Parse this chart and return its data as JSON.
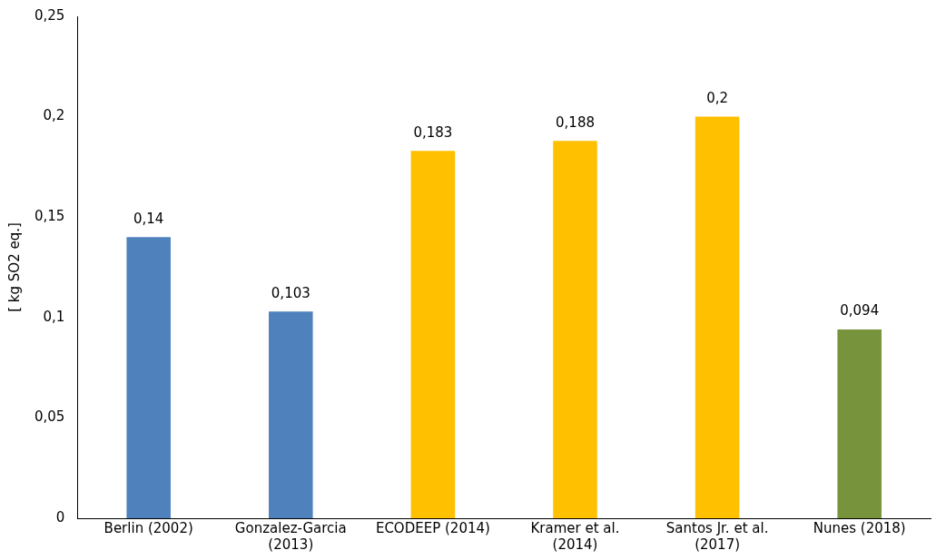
{
  "chart_data": {
    "type": "bar",
    "ylabel": "[ kg SO2 eq.]",
    "categories": [
      "Berlin (2002)",
      "Gonzalez-Garcia (2013)",
      "ECODEEP (2014)",
      "Kramer et al. (2014)",
      "Santos Jr. et al. (2017)",
      "Nunes (2018)"
    ],
    "values": [
      0.14,
      0.103,
      0.183,
      0.188,
      0.2,
      0.094
    ],
    "colors": [
      "#4f81bd",
      "#4f81bd",
      "#ffc000",
      "#ffc000",
      "#ffc000",
      "#77933c"
    ],
    "value_labels": [
      "0,14",
      "0,103",
      "0,183",
      "0,188",
      "0,2",
      "0,094"
    ],
    "ylim": [
      0,
      0.25
    ],
    "yticks": [
      0,
      {
        "value": 0.05,
        "label": "0,05"
      },
      {
        "value": 0.1,
        "label": "0,1"
      },
      {
        "value": 0.15,
        "label": "0,15"
      },
      {
        "value": 0.2,
        "label": "0,2"
      },
      {
        "value": 0.25,
        "label": "0,25"
      }
    ],
    "grid": false,
    "legend": false
  }
}
